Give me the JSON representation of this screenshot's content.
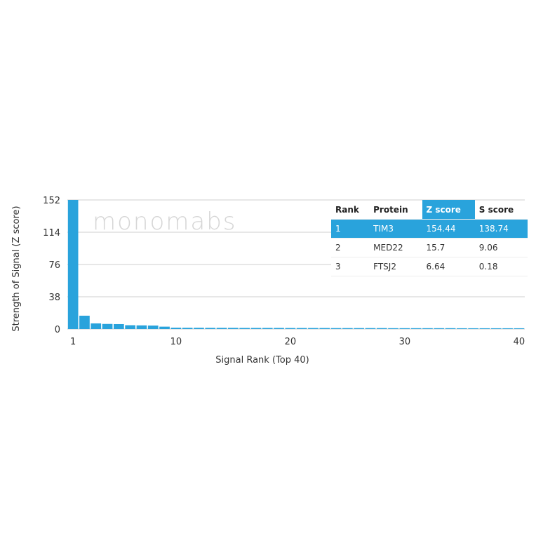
{
  "chart_data": {
    "type": "bar",
    "xlabel": "Signal Rank (Top 40)",
    "ylabel": "Strength of Signal (Z score)",
    "ylim": [
      0,
      152
    ],
    "yticks": [
      0,
      38,
      76,
      114,
      152
    ],
    "xticks": [
      1,
      10,
      20,
      30,
      40
    ],
    "grid": true,
    "color": "#29a3dc",
    "x": [
      1,
      2,
      3,
      4,
      5,
      6,
      7,
      8,
      9,
      10,
      11,
      12,
      13,
      14,
      15,
      16,
      17,
      18,
      19,
      20,
      21,
      22,
      23,
      24,
      25,
      26,
      27,
      28,
      29,
      30,
      31,
      32,
      33,
      34,
      35,
      36,
      37,
      38,
      39,
      40
    ],
    "values": [
      154.44,
      15.7,
      6.64,
      6,
      5.8,
      4.5,
      4.3,
      4.1,
      2.8,
      1.6,
      1.5,
      1.5,
      1.4,
      1.4,
      1.4,
      1.3,
      1.3,
      1.3,
      1.3,
      1.2,
      1.2,
      1.2,
      1.2,
      1.1,
      1.1,
      1.1,
      1.1,
      1.1,
      1.0,
      1.0,
      1.0,
      1.0,
      1.0,
      1.0,
      0.9,
      0.9,
      0.9,
      0.9,
      0.9,
      0.9
    ]
  },
  "watermark": "monomabs",
  "table": {
    "headers": [
      "Rank",
      "Protein",
      "Z score",
      "S score"
    ],
    "rows": [
      [
        "1",
        "TIM3",
        "154.44",
        "138.74"
      ],
      [
        "2",
        "MED22",
        "15.7",
        "9.06"
      ],
      [
        "3",
        "FTSJ2",
        "6.64",
        "0.18"
      ]
    ],
    "highlight_color": "#29a3dc"
  }
}
